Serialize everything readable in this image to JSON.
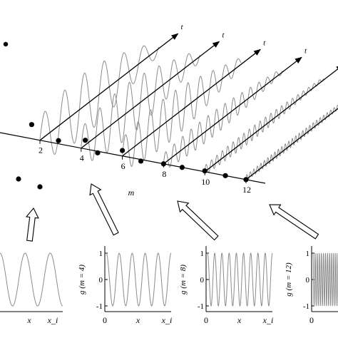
{
  "main_axis": {
    "label": "m",
    "ticks": [
      "2",
      "4",
      "6",
      "8",
      "10",
      "12"
    ],
    "time_label": "t"
  },
  "time_axes": [
    {
      "m": 2,
      "wave_amplitude": 0.55,
      "wave_cycles": 6.0
    },
    {
      "m": 4,
      "wave_amplitude": 0.48,
      "wave_cycles": 8.0
    },
    {
      "m": 6,
      "wave_amplitude": 0.42,
      "wave_cycles": 9.5
    },
    {
      "m": 8,
      "wave_amplitude": 0.22,
      "wave_cycles": 14.0
    },
    {
      "m": 10,
      "wave_amplitude": 0.12,
      "wave_cycles": 22.0
    },
    {
      "m": 12,
      "wave_amplitude": 0.07,
      "wave_cycles": 34.0
    }
  ],
  "dots": [
    {
      "m": 1.6,
      "offset": 0.9
    },
    {
      "m": 2.9,
      "offset": 0.2
    },
    {
      "m": 4.2,
      "offset": 0.55
    },
    {
      "m": 4.8,
      "offset": -0.1
    },
    {
      "m": 6.0,
      "offset": 0.35
    },
    {
      "m": 6.9,
      "offset": -0.1
    },
    {
      "m": 8.0,
      "offset": 0.0
    },
    {
      "m": 8.9,
      "offset": 0.0
    },
    {
      "m": 10.0,
      "offset": 0.05
    },
    {
      "m": 11.0,
      "offset": 0.0
    },
    {
      "m": 12.0,
      "offset": 0.0
    }
  ],
  "insets": [
    {
      "ylabel": "",
      "cycles": 2.5,
      "x_ticks": [
        "x",
        "x_i"
      ],
      "y_ticks": []
    },
    {
      "ylabel": "g (m = 4)",
      "cycles": 5,
      "x_ticks": [
        "0",
        "x",
        "x_i"
      ],
      "y_ticks": [
        "1",
        "0",
        "-1"
      ]
    },
    {
      "ylabel": "g (m = 8)",
      "cycles": 9,
      "x_ticks": [
        "0",
        "x",
        "x_i"
      ],
      "y_ticks": [
        "1",
        "0",
        "-1"
      ]
    },
    {
      "ylabel": "g (m = 12)",
      "cycles": 12,
      "x_ticks": [
        "0"
      ],
      "y_ticks": [
        "1",
        "0",
        "-1"
      ]
    }
  ],
  "colors": {
    "wave": "#8c8c8c",
    "axis": "#000000",
    "arrow_fill": "#ffffff"
  }
}
